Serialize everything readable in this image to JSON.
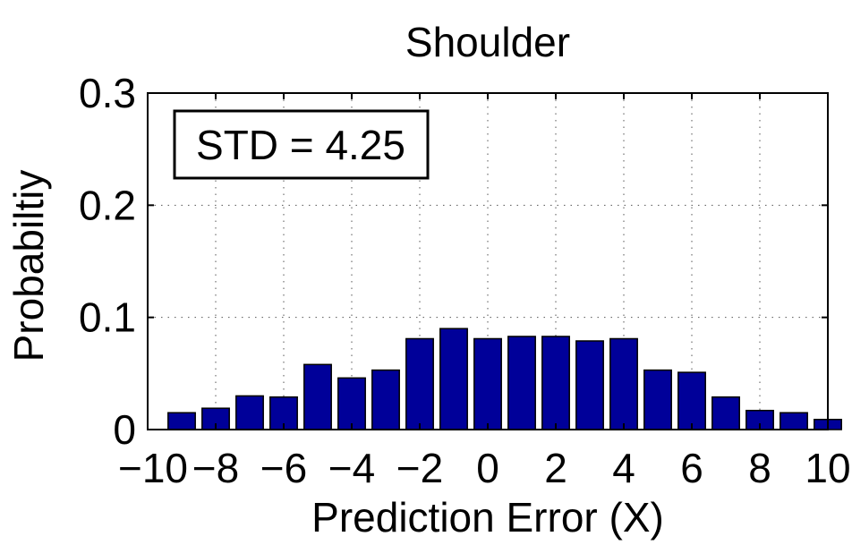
{
  "chart_data": {
    "type": "bar",
    "title": "Shoulder",
    "xlabel": "Prediction Error (X)",
    "ylabel": "Probabiltiy",
    "annotation": "STD = 4.25",
    "xlim": [
      -10,
      10
    ],
    "ylim": [
      0,
      0.3
    ],
    "xticks": [
      -10,
      -8,
      -6,
      -4,
      -2,
      0,
      2,
      4,
      6,
      8,
      10
    ],
    "xtick_labels": [
      "−10",
      "−8",
      "−6",
      "−4",
      "−2",
      "0",
      "2",
      "4",
      "6",
      "8",
      "10"
    ],
    "yticks": [
      0,
      0.1,
      0.2,
      0.3
    ],
    "ytick_labels": [
      "0",
      "0.1",
      "0.2",
      "0.3"
    ],
    "grid": true,
    "bar_color": "#000099",
    "x": [
      -9,
      -8,
      -7,
      -6,
      -5,
      -4,
      -3,
      -2,
      -1,
      0,
      1,
      2,
      3,
      4,
      5,
      6,
      7,
      8,
      9,
      10
    ],
    "values": [
      0.015,
      0.019,
      0.03,
      0.029,
      0.058,
      0.046,
      0.053,
      0.081,
      0.09,
      0.081,
      0.083,
      0.083,
      0.079,
      0.081,
      0.053,
      0.051,
      0.029,
      0.017,
      0.015,
      0.009
    ]
  }
}
